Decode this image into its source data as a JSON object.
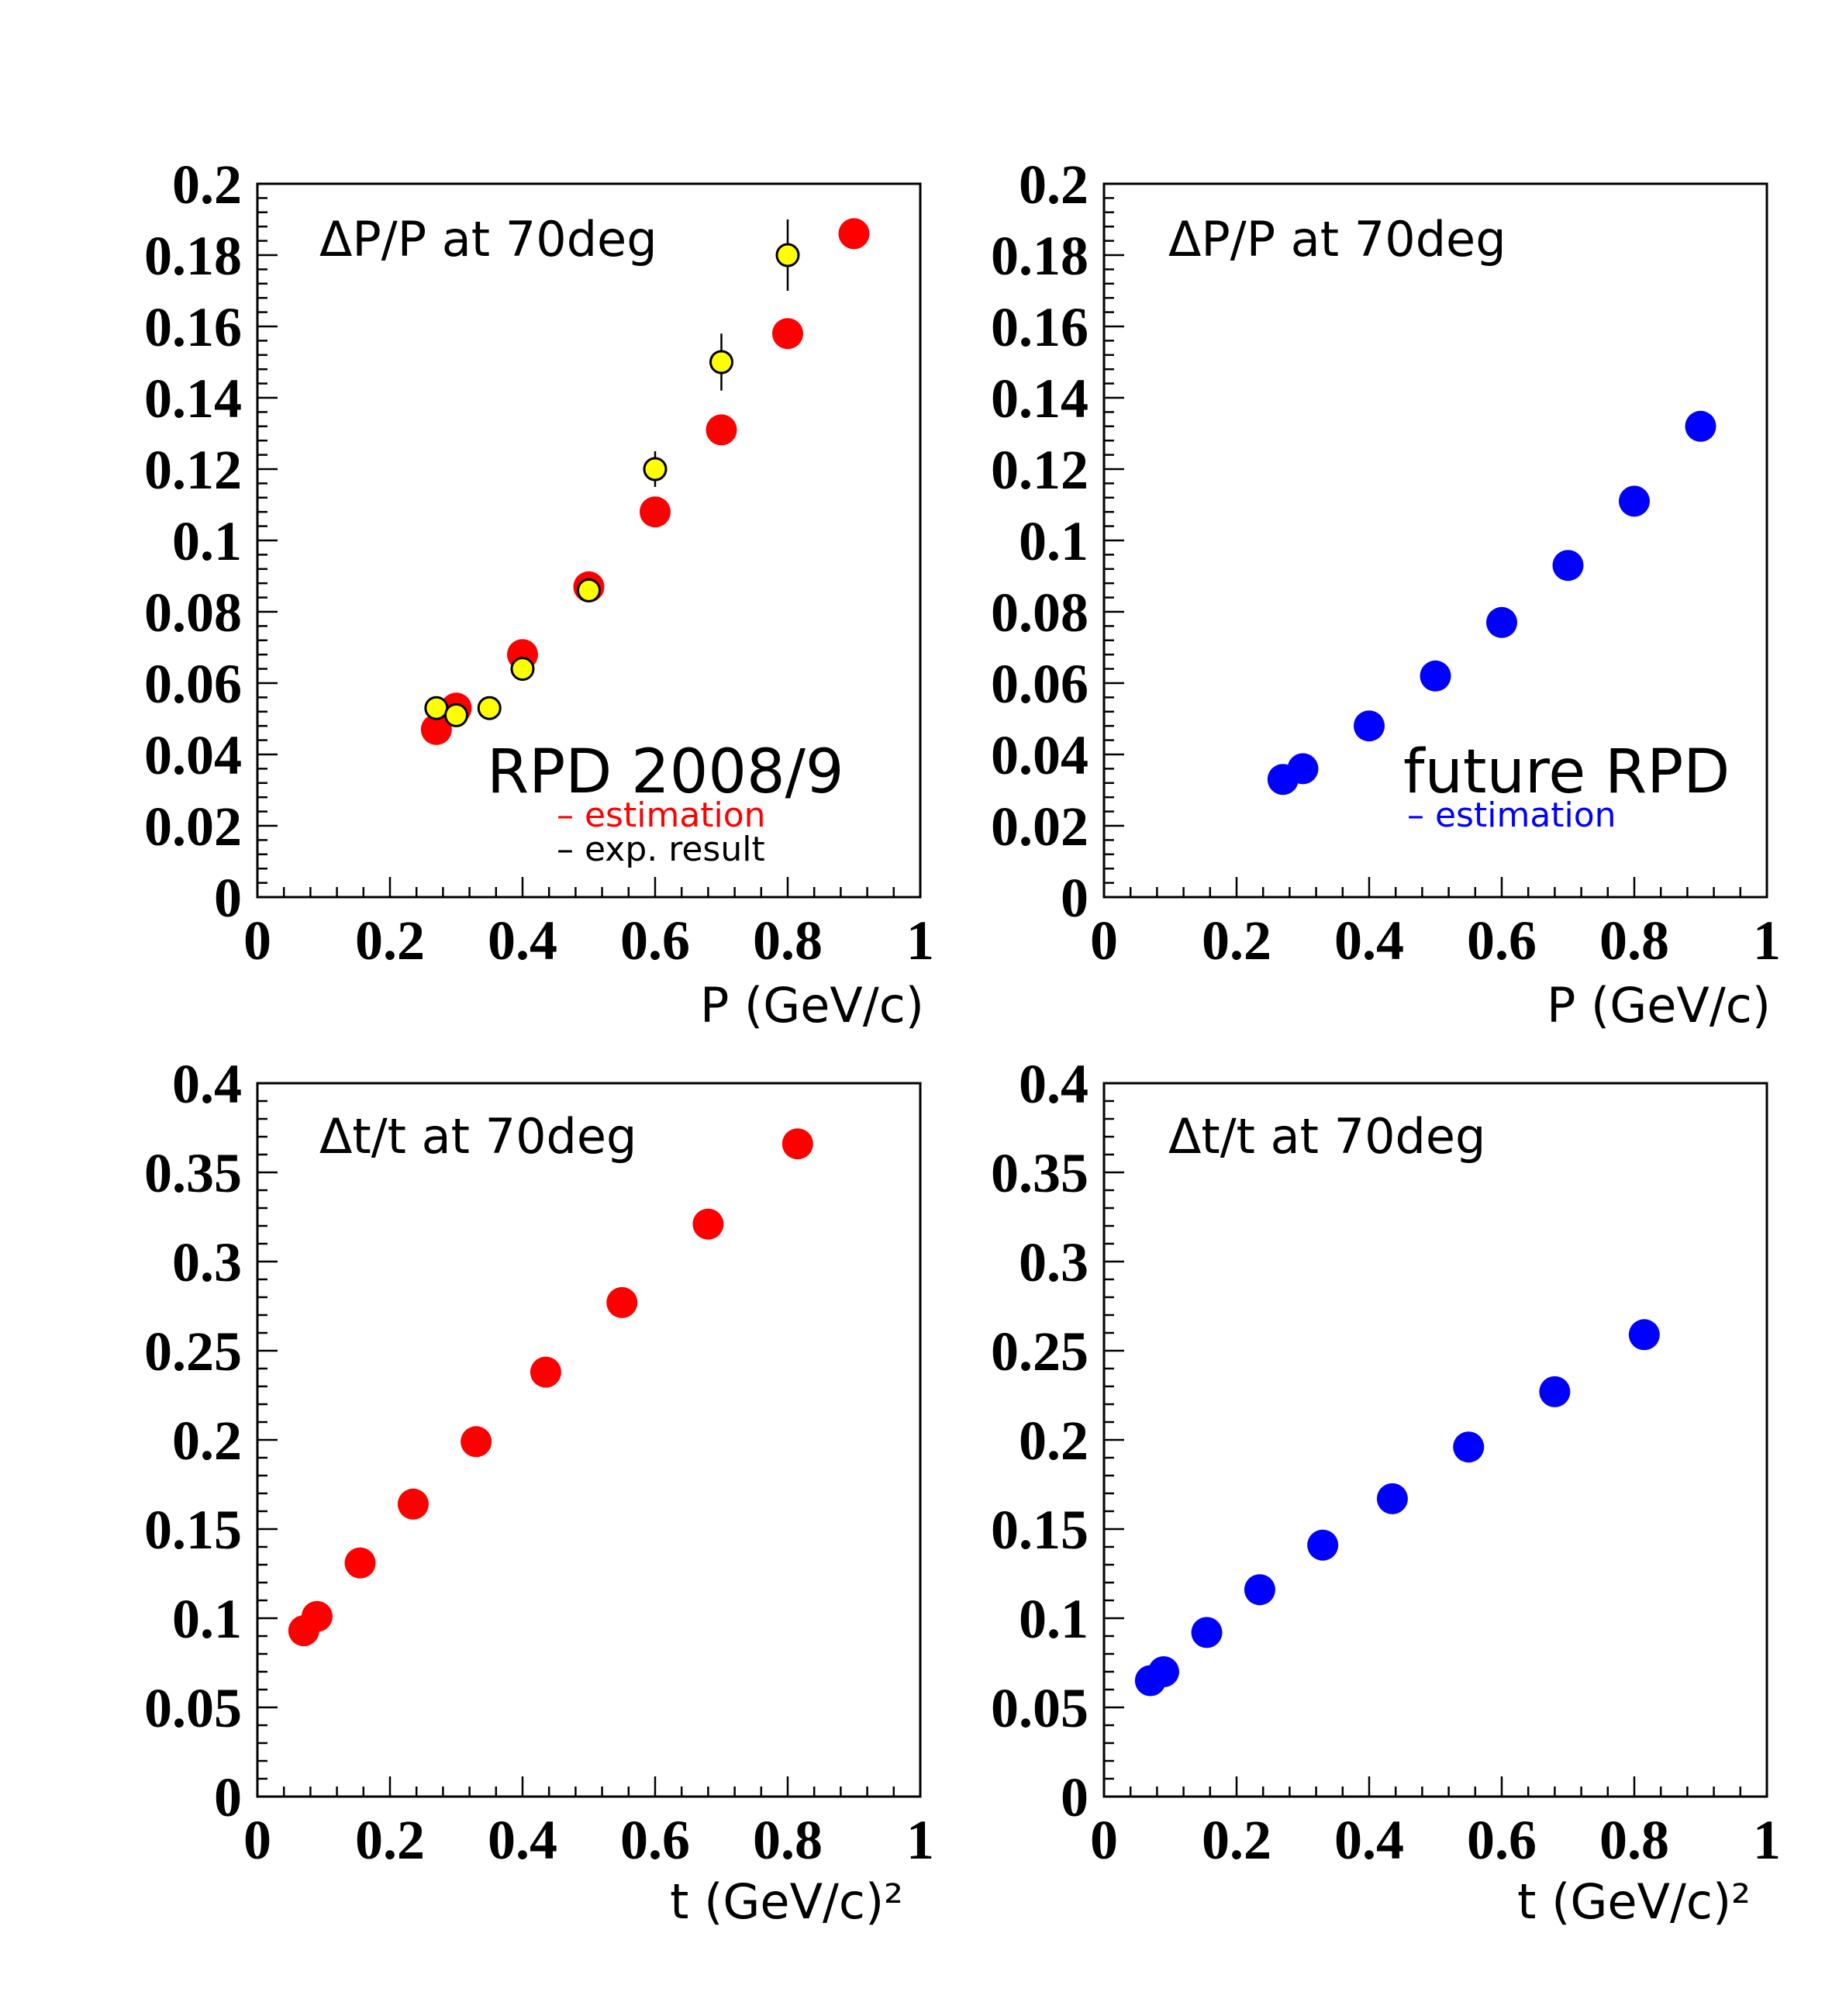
{
  "chart_data": [
    {
      "type": "scatter",
      "title": "ΔP/P  at 70deg",
      "xlabel": "P (GeV/c)",
      "ylabel": "",
      "xlim": [
        0,
        1
      ],
      "ylim": [
        0,
        0.2
      ],
      "xticks": [
        "0",
        "0.2",
        "0.4",
        "0.6",
        "0.8",
        "1"
      ],
      "yticks": [
        "0",
        "0.02",
        "0.04",
        "0.06",
        "0.08",
        "0.1",
        "0.12",
        "0.14",
        "0.16",
        "0.18",
        "0.2"
      ],
      "annotation": "RPD 2008/9",
      "legend": [
        {
          "text": "– estimation",
          "color": "#ff0000"
        },
        {
          "text": "– exp. result",
          "color": "#000000"
        }
      ],
      "series": [
        {
          "color": "#ff0000",
          "marker": "filled-circle",
          "points": [
            {
              "x": 0.27,
              "y": 0.047
            },
            {
              "x": 0.3,
              "y": 0.053
            },
            {
              "x": 0.4,
              "y": 0.068
            },
            {
              "x": 0.5,
              "y": 0.087
            },
            {
              "x": 0.6,
              "y": 0.108
            },
            {
              "x": 0.7,
              "y": 0.131
            },
            {
              "x": 0.8,
              "y": 0.158
            },
            {
              "x": 0.9,
              "y": 0.186
            }
          ]
        },
        {
          "color": "#ffff00",
          "marker": "outlined-circle",
          "points": [
            {
              "x": 0.27,
              "y": 0.053,
              "err": 0.002
            },
            {
              "x": 0.3,
              "y": 0.051,
              "err": 0.002
            },
            {
              "x": 0.35,
              "y": 0.053,
              "err": 0.002
            },
            {
              "x": 0.4,
              "y": 0.064,
              "err": 0.003
            },
            {
              "x": 0.5,
              "y": 0.086,
              "err": 0.003
            },
            {
              "x": 0.6,
              "y": 0.12,
              "err": 0.005
            },
            {
              "x": 0.7,
              "y": 0.15,
              "err": 0.008
            },
            {
              "x": 0.8,
              "y": 0.18,
              "err": 0.01
            }
          ]
        }
      ]
    },
    {
      "type": "scatter",
      "title": "ΔP/P  at 70deg",
      "xlabel": "P (GeV/c)",
      "ylabel": "",
      "xlim": [
        0,
        1
      ],
      "ylim": [
        0,
        0.2
      ],
      "xticks": [
        "0",
        "0.2",
        "0.4",
        "0.6",
        "0.8",
        "1"
      ],
      "yticks": [
        "0",
        "0.02",
        "0.04",
        "0.06",
        "0.08",
        "0.1",
        "0.12",
        "0.14",
        "0.16",
        "0.18",
        "0.2"
      ],
      "annotation": "future RPD",
      "legend": [
        {
          "text": "– estimation",
          "color": "#0000ff"
        }
      ],
      "series": [
        {
          "color": "#0000ff",
          "marker": "filled-circle",
          "points": [
            {
              "x": 0.27,
              "y": 0.033
            },
            {
              "x": 0.3,
              "y": 0.036
            },
            {
              "x": 0.4,
              "y": 0.048
            },
            {
              "x": 0.5,
              "y": 0.062
            },
            {
              "x": 0.6,
              "y": 0.077
            },
            {
              "x": 0.7,
              "y": 0.093
            },
            {
              "x": 0.8,
              "y": 0.111
            },
            {
              "x": 0.9,
              "y": 0.132
            }
          ]
        }
      ]
    },
    {
      "type": "scatter",
      "title": "Δt/t  at 70deg",
      "xlabel": "t (GeV/c)²",
      "ylabel": "",
      "xlim": [
        0,
        1
      ],
      "ylim": [
        0,
        0.4
      ],
      "xticks": [
        "0",
        "0.2",
        "0.4",
        "0.6",
        "0.8",
        "1"
      ],
      "yticks": [
        "0",
        "0.05",
        "0.1",
        "0.15",
        "0.2",
        "0.25",
        "0.3",
        "0.35",
        "0.4"
      ],
      "annotation": "",
      "legend": [],
      "series": [
        {
          "color": "#ff0000",
          "marker": "filled-circle",
          "points": [
            {
              "x": 0.07,
              "y": 0.093
            },
            {
              "x": 0.09,
              "y": 0.101
            },
            {
              "x": 0.155,
              "y": 0.131
            },
            {
              "x": 0.235,
              "y": 0.164
            },
            {
              "x": 0.33,
              "y": 0.199
            },
            {
              "x": 0.435,
              "y": 0.238
            },
            {
              "x": 0.55,
              "y": 0.277
            },
            {
              "x": 0.68,
              "y": 0.321
            },
            {
              "x": 0.815,
              "y": 0.366
            }
          ]
        }
      ]
    },
    {
      "type": "scatter",
      "title": "Δt/t  at 70deg",
      "xlabel": "t (GeV/c)²",
      "ylabel": "",
      "xlim": [
        0,
        1
      ],
      "ylim": [
        0,
        0.4
      ],
      "xticks": [
        "0",
        "0.2",
        "0.4",
        "0.6",
        "0.8",
        "1"
      ],
      "yticks": [
        "0",
        "0.05",
        "0.1",
        "0.15",
        "0.2",
        "0.25",
        "0.3",
        "0.35",
        "0.4"
      ],
      "annotation": "",
      "legend": [],
      "series": [
        {
          "color": "#0000ff",
          "marker": "filled-circle",
          "points": [
            {
              "x": 0.07,
              "y": 0.065
            },
            {
              "x": 0.09,
              "y": 0.07
            },
            {
              "x": 0.155,
              "y": 0.092
            },
            {
              "x": 0.235,
              "y": 0.116
            },
            {
              "x": 0.33,
              "y": 0.141
            },
            {
              "x": 0.435,
              "y": 0.167
            },
            {
              "x": 0.55,
              "y": 0.196
            },
            {
              "x": 0.68,
              "y": 0.227
            },
            {
              "x": 0.815,
              "y": 0.259
            }
          ]
        }
      ]
    }
  ]
}
